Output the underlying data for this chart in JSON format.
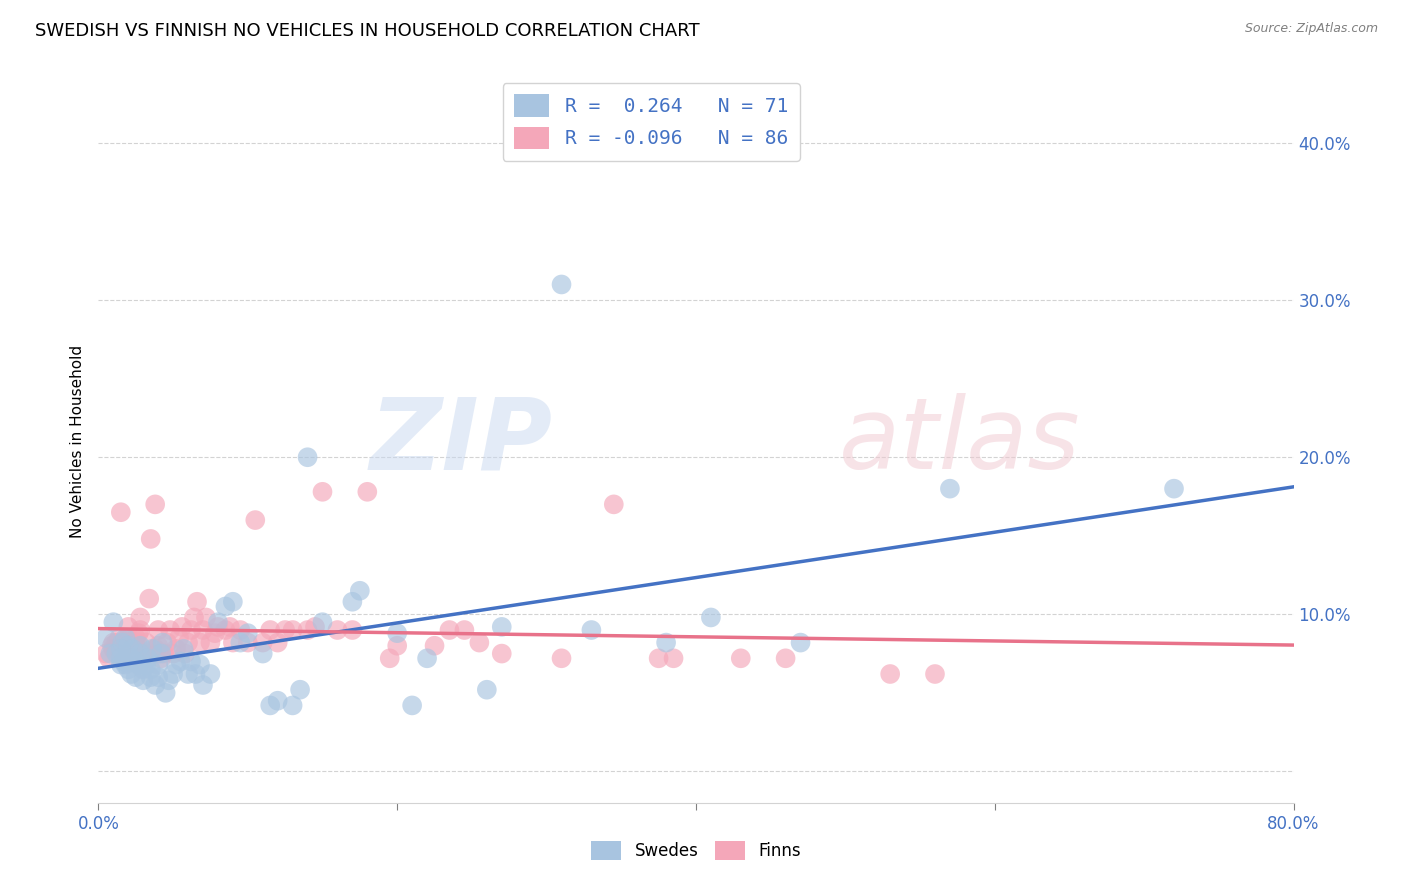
{
  "title": "SWEDISH VS FINNISH NO VEHICLES IN HOUSEHOLD CORRELATION CHART",
  "source": "Source: ZipAtlas.com",
  "ylabel": "No Vehicles in Household",
  "xlim": [
    0.0,
    0.8
  ],
  "ylim": [
    -0.02,
    0.44
  ],
  "xtick_positions": [
    0.0,
    0.2,
    0.4,
    0.6,
    0.8
  ],
  "xtick_labels_show": [
    "0.0%",
    "",
    "",
    "",
    "80.0%"
  ],
  "yticks": [
    0.0,
    0.1,
    0.2,
    0.3,
    0.4
  ],
  "ytick_labels": [
    "",
    "10.0%",
    "20.0%",
    "30.0%",
    "40.0%"
  ],
  "swedes_R": 0.264,
  "swedes_N": 71,
  "finns_R": -0.096,
  "finns_N": 86,
  "swede_color": "#a8c4e0",
  "finn_color": "#f4a7b9",
  "swede_line_color": "#4472c4",
  "finn_line_color": "#e8728a",
  "legend_text_color": "#4472c4",
  "title_fontsize": 13,
  "axis_label_fontsize": 11,
  "tick_fontsize": 12,
  "watermark_zip": "ZIP",
  "watermark_atlas": "atlas",
  "swedes_x": [
    0.005,
    0.008,
    0.01,
    0.012,
    0.015,
    0.015,
    0.015,
    0.016,
    0.017,
    0.018,
    0.018,
    0.02,
    0.02,
    0.022,
    0.022,
    0.023,
    0.025,
    0.025,
    0.027,
    0.028,
    0.028,
    0.03,
    0.03,
    0.032,
    0.033,
    0.035,
    0.035,
    0.036,
    0.038,
    0.04,
    0.04,
    0.042,
    0.043,
    0.045,
    0.047,
    0.05,
    0.052,
    0.055,
    0.057,
    0.06,
    0.062,
    0.065,
    0.068,
    0.07,
    0.075,
    0.08,
    0.085,
    0.09,
    0.095,
    0.1,
    0.11,
    0.115,
    0.12,
    0.13,
    0.135,
    0.14,
    0.15,
    0.17,
    0.175,
    0.2,
    0.21,
    0.22,
    0.26,
    0.27,
    0.31,
    0.33,
    0.38,
    0.41,
    0.47,
    0.57,
    0.72
  ],
  "swedes_y": [
    0.085,
    0.075,
    0.095,
    0.075,
    0.068,
    0.072,
    0.078,
    0.082,
    0.07,
    0.068,
    0.085,
    0.065,
    0.08,
    0.062,
    0.072,
    0.078,
    0.06,
    0.07,
    0.068,
    0.075,
    0.08,
    0.058,
    0.065,
    0.068,
    0.072,
    0.06,
    0.065,
    0.078,
    0.055,
    0.06,
    0.068,
    0.075,
    0.082,
    0.05,
    0.058,
    0.062,
    0.068,
    0.07,
    0.078,
    0.062,
    0.07,
    0.062,
    0.068,
    0.055,
    0.062,
    0.095,
    0.105,
    0.108,
    0.082,
    0.088,
    0.075,
    0.042,
    0.045,
    0.042,
    0.052,
    0.2,
    0.095,
    0.108,
    0.115,
    0.088,
    0.042,
    0.072,
    0.052,
    0.092,
    0.31,
    0.09,
    0.082,
    0.098,
    0.082,
    0.18,
    0.18
  ],
  "finns_x": [
    0.005,
    0.007,
    0.009,
    0.01,
    0.01,
    0.012,
    0.012,
    0.014,
    0.015,
    0.015,
    0.016,
    0.018,
    0.018,
    0.019,
    0.02,
    0.02,
    0.022,
    0.022,
    0.024,
    0.025,
    0.025,
    0.026,
    0.027,
    0.028,
    0.028,
    0.03,
    0.032,
    0.034,
    0.035,
    0.036,
    0.038,
    0.038,
    0.04,
    0.04,
    0.04,
    0.042,
    0.044,
    0.046,
    0.048,
    0.05,
    0.052,
    0.054,
    0.056,
    0.058,
    0.06,
    0.062,
    0.064,
    0.066,
    0.068,
    0.07,
    0.072,
    0.075,
    0.078,
    0.08,
    0.085,
    0.088,
    0.09,
    0.095,
    0.1,
    0.105,
    0.11,
    0.115,
    0.12,
    0.125,
    0.13,
    0.14,
    0.145,
    0.15,
    0.16,
    0.17,
    0.18,
    0.195,
    0.2,
    0.225,
    0.235,
    0.245,
    0.255,
    0.27,
    0.31,
    0.345,
    0.375,
    0.385,
    0.43,
    0.46,
    0.53,
    0.56
  ],
  "finns_y": [
    0.075,
    0.072,
    0.08,
    0.078,
    0.082,
    0.078,
    0.082,
    0.085,
    0.072,
    0.165,
    0.075,
    0.075,
    0.082,
    0.085,
    0.075,
    0.092,
    0.075,
    0.082,
    0.078,
    0.08,
    0.085,
    0.082,
    0.088,
    0.09,
    0.098,
    0.075,
    0.082,
    0.11,
    0.148,
    0.075,
    0.078,
    0.17,
    0.075,
    0.08,
    0.09,
    0.072,
    0.075,
    0.082,
    0.09,
    0.075,
    0.078,
    0.085,
    0.092,
    0.075,
    0.082,
    0.09,
    0.098,
    0.108,
    0.082,
    0.09,
    0.098,
    0.082,
    0.088,
    0.092,
    0.09,
    0.092,
    0.082,
    0.09,
    0.082,
    0.16,
    0.082,
    0.09,
    0.082,
    0.09,
    0.09,
    0.09,
    0.092,
    0.178,
    0.09,
    0.09,
    0.178,
    0.072,
    0.08,
    0.08,
    0.09,
    0.09,
    0.082,
    0.075,
    0.072,
    0.17,
    0.072,
    0.072,
    0.072,
    0.072,
    0.062,
    0.062
  ]
}
